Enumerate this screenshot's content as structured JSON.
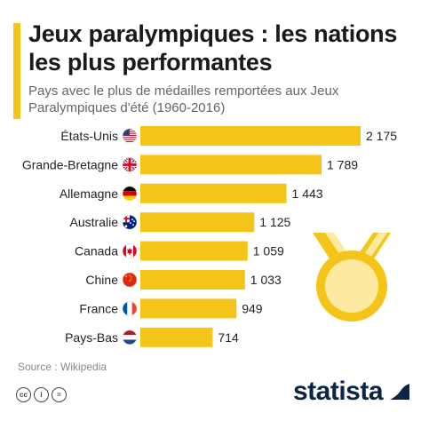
{
  "header": {
    "title": "Jeux paralympiques : les nations les plus performantes",
    "subtitle": "Pays avec le plus de médailles remportées aux Jeux Paralympiques d'été (1960-2016)"
  },
  "chart_data": {
    "type": "bar",
    "orientation": "horizontal",
    "categories": [
      "États-Unis",
      "Grande-Bretagne",
      "Allemagne",
      "Australie",
      "Canada",
      "Chine",
      "France",
      "Pays-Bas"
    ],
    "values": [
      2175,
      1789,
      1443,
      1125,
      1059,
      1033,
      949,
      714
    ],
    "value_labels": [
      "2 175",
      "1 789",
      "1 443",
      "1 125",
      "1 059",
      "1 033",
      "949",
      "714"
    ],
    "flags": [
      "us-flag-icon",
      "uk-flag-icon",
      "germany-flag-icon",
      "australia-flag-icon",
      "canada-flag-icon",
      "china-flag-icon",
      "france-flag-icon",
      "netherlands-flag-icon"
    ],
    "bar_color": "#f5c418",
    "title": "Jeux paralympiques : les nations les plus performantes",
    "xlabel": "",
    "ylabel": "",
    "xlim": [
      0,
      2175
    ],
    "grid": false,
    "legend": "none"
  },
  "footer": {
    "source": "Source : Wikipedia",
    "cc_icons": [
      "cc-icon",
      "by-icon",
      "equals-icon"
    ],
    "brand": "statista"
  },
  "colors": {
    "accent": "#f5c418",
    "brand": "#0b2546",
    "title": "#1a1a1a",
    "subtitle": "#666666"
  },
  "decoration": "medal-icon"
}
